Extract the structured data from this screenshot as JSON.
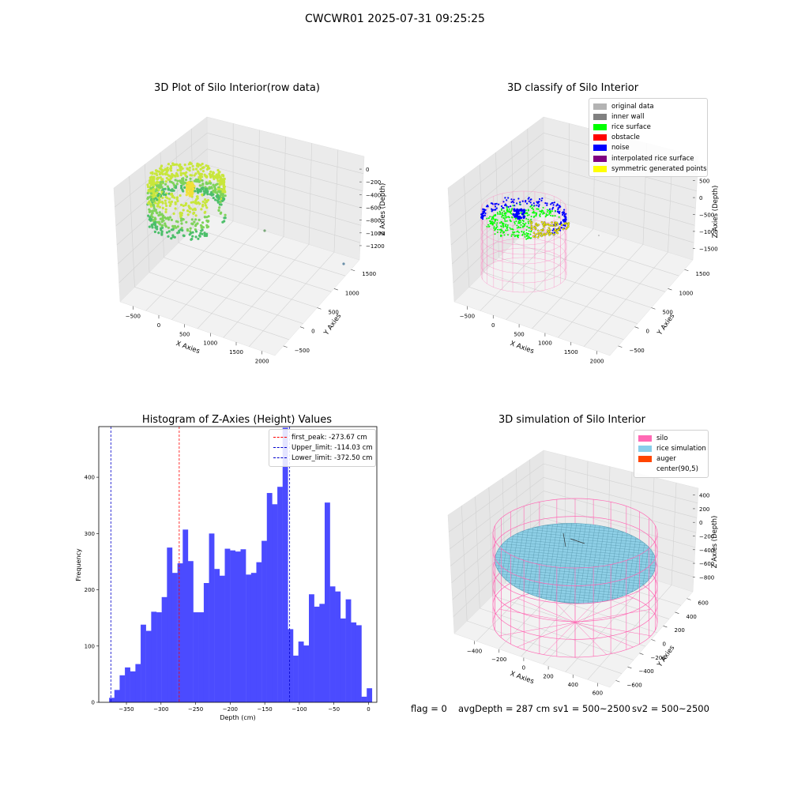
{
  "figure": {
    "title": "CWCWR01 2025-07-31 09:25:25",
    "footer": {
      "flag": "flag = 0",
      "avg_depth": "avgDepth = 287 cm",
      "sv1": "sv1 = 500~2500",
      "sv2": "sv2 = 500~2500"
    }
  },
  "panels": {
    "raw": {
      "title": "3D Plot of Silo Interior(row data)",
      "xlabel": "X Axies",
      "ylabel": "Y Axies",
      "zlabel": "Z Axies (Depth)",
      "xticks": [
        "−500",
        "0",
        "500",
        "1000",
        "1500",
        "2000"
      ],
      "yticks": [
        "−500",
        "0",
        "500",
        "1000",
        "1500"
      ],
      "zticks": [
        "0",
        "−200",
        "−400",
        "−600",
        "−800",
        "−1000",
        "−1200"
      ]
    },
    "classify": {
      "title": "3D classify of Silo Interior",
      "xlabel": "X Axies",
      "ylabel": "Y Axies",
      "zlabel": "Z Axies (Depth)",
      "xticks": [
        "−500",
        "0",
        "500",
        "1000",
        "1500",
        "2000"
      ],
      "yticks": [
        "−500",
        "0",
        "500",
        "1000",
        "1500"
      ],
      "zticks": [
        "500",
        "0",
        "−500",
        "−1000",
        "−1500"
      ],
      "legend": [
        {
          "label": "original data",
          "color": "#b3b3b3"
        },
        {
          "label": "inner wall",
          "color": "#808080"
        },
        {
          "label": "rice surface",
          "color": "#00ff00"
        },
        {
          "label": "obstacle",
          "color": "#ff0000"
        },
        {
          "label": "noise",
          "color": "#0000ff"
        },
        {
          "label": "interpolated rice surface",
          "color": "#800080"
        },
        {
          "label": "symmetric generated points",
          "color": "#ffff00"
        }
      ]
    },
    "simulation": {
      "title": "3D simulation of Silo Interior",
      "xlabel": "X Axies",
      "ylabel": "Y Axies",
      "zlabel": "Z Axies (Depth)",
      "xticks": [
        "−400",
        "−200",
        "0",
        "200",
        "400",
        "600"
      ],
      "yticks": [
        "−600",
        "−400",
        "−200",
        "0",
        "200",
        "400",
        "600"
      ],
      "zticks": [
        "400",
        "200",
        "0",
        "−200",
        "−400",
        "−600",
        "−800"
      ],
      "legend": [
        {
          "label": "silo",
          "color": "#ff69b4"
        },
        {
          "label": "rice simulation",
          "color": "#87ceeb"
        },
        {
          "label": "auger",
          "color": "#ff4500"
        },
        {
          "label": "center(90,5)",
          "color": ""
        }
      ]
    }
  },
  "chart_data": {
    "type": "bar",
    "title": "Histogram of Z-Axies (Height) Values",
    "xlabel": "Depth (cm)",
    "ylabel": "Frequency",
    "xlim": [
      -390,
      12
    ],
    "ylim": [
      0,
      490
    ],
    "bar_color": "#4b4bff",
    "xticks": [
      -350,
      -300,
      -250,
      -200,
      -150,
      -100,
      -50,
      0
    ],
    "yticks": [
      0,
      100,
      200,
      300,
      400
    ],
    "bin_start": -375,
    "bin_width": 7.6,
    "values": [
      8,
      22,
      48,
      62,
      55,
      68,
      138,
      127,
      161,
      160,
      187,
      275,
      230,
      247,
      307,
      251,
      160,
      160,
      212,
      300,
      237,
      225,
      273,
      270,
      268,
      272,
      227,
      230,
      249,
      287,
      372,
      352,
      383,
      488,
      130,
      83,
      108,
      101,
      192,
      170,
      175,
      355,
      206,
      197,
      149,
      183,
      142,
      137,
      10,
      25
    ],
    "lines": [
      {
        "label": "first_peak: -273.67 cm",
        "x": -273.67,
        "color": "#ff0000"
      },
      {
        "label": "Upper_limit: -114.03 cm",
        "x": -114.03,
        "color": "#0000cc"
      },
      {
        "label": "Lower_limit: -372.50 cm",
        "x": -372.5,
        "color": "#0000cc"
      }
    ]
  }
}
